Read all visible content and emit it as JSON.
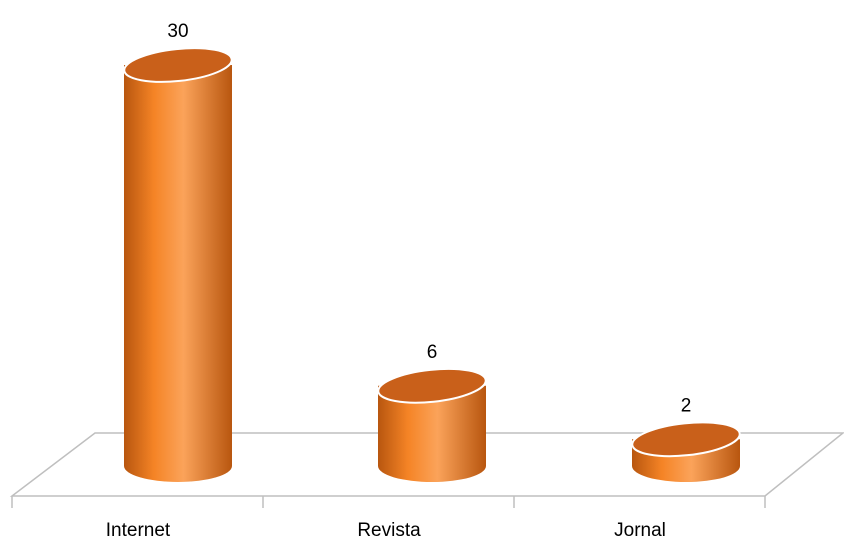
{
  "chart_data": {
    "type": "bar",
    "style": "3d-cylinder",
    "categories": [
      "Internet",
      "Revista",
      "Jornal"
    ],
    "values": [
      30,
      6,
      2
    ],
    "data_labels": [
      "30",
      "6",
      "2"
    ],
    "title": "",
    "xlabel": "",
    "ylabel": "",
    "ylim": [
      0,
      30
    ],
    "grid": false,
    "legend": "none",
    "colors": {
      "bar_body": "#f58426",
      "bar_shadow": "#b8560f",
      "bar_highlight": "#fba35a",
      "bar_top": "#c9601a",
      "bar_edge": "#ffffff",
      "floor_line": "#bfbfbf"
    }
  }
}
